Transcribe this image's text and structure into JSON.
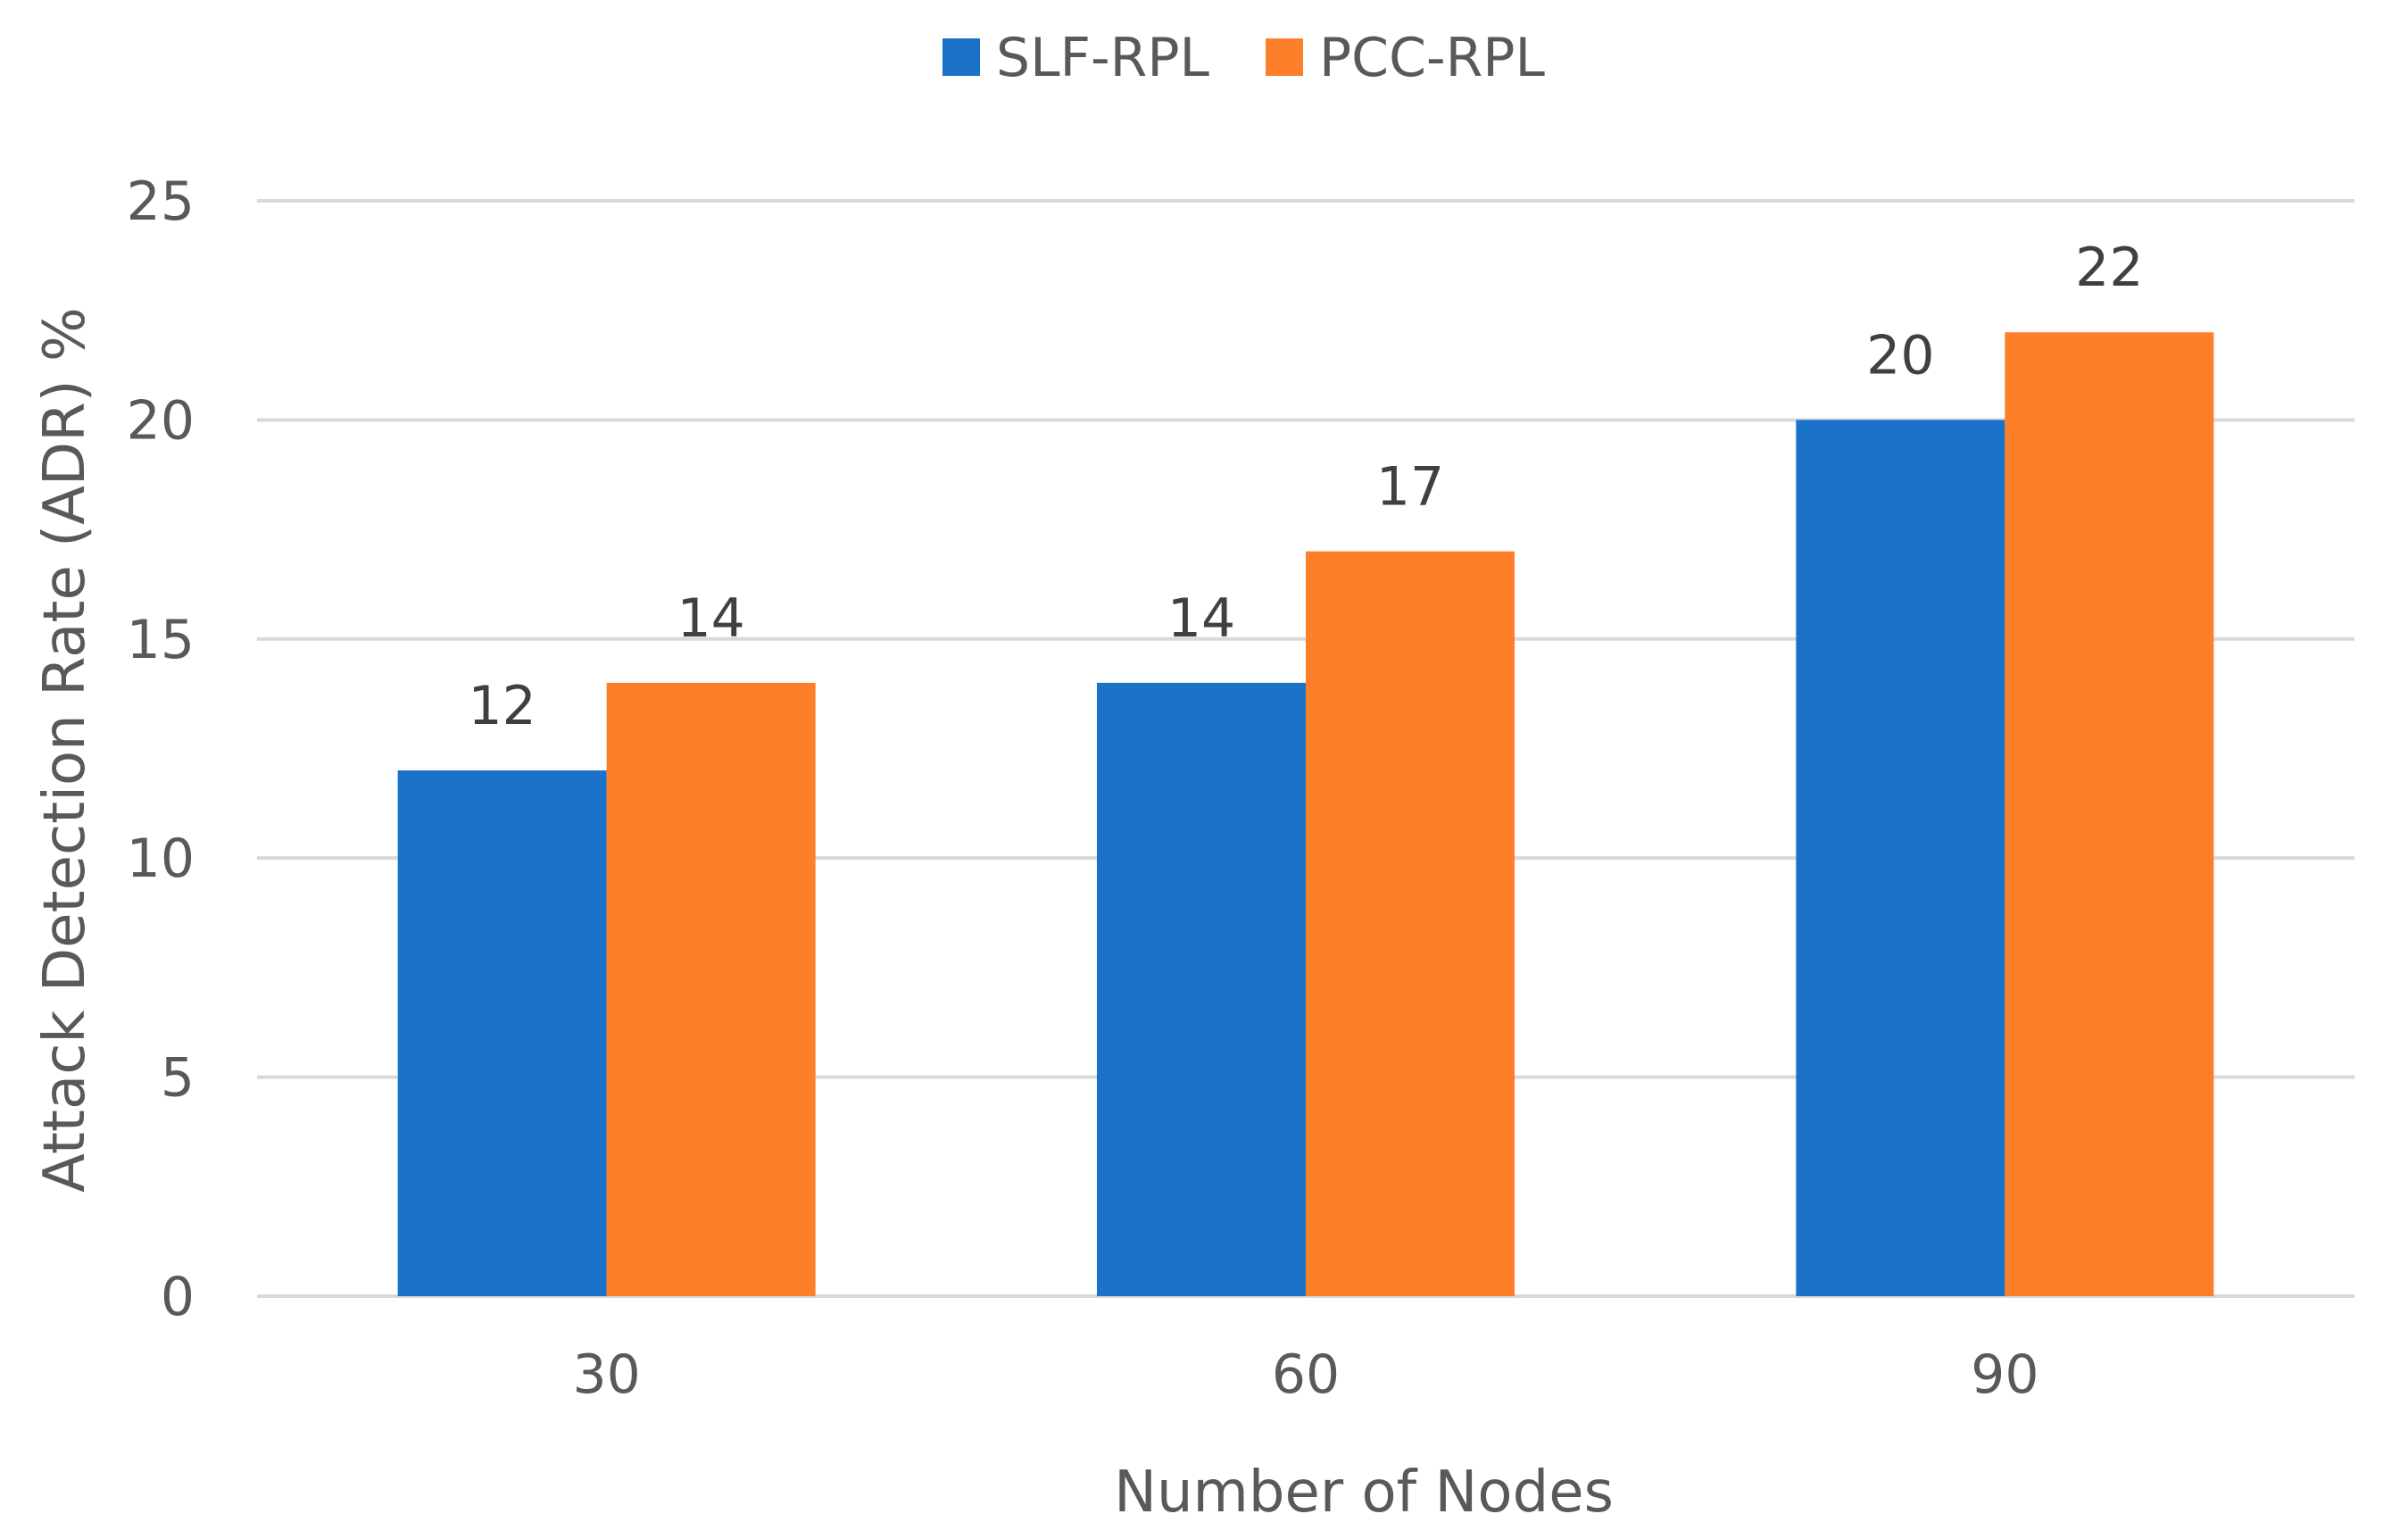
{
  "chart_data": {
    "type": "bar",
    "title": "",
    "xlabel": "Number of Nodes",
    "ylabel": "Attack Detection Rate (ADR) %",
    "categories": [
      "30",
      "60",
      "90"
    ],
    "series": [
      {
        "name": "SLF-RPL",
        "color": "#1a73c9",
        "values": [
          12,
          14,
          20
        ]
      },
      {
        "name": "PCC-RPL",
        "color": "#fe7f29",
        "values": [
          14,
          17,
          22
        ]
      }
    ],
    "ylim": [
      0,
      25
    ],
    "yticks": [
      0,
      5,
      10,
      15,
      20,
      25
    ],
    "grid": true,
    "legend_position": "top-center",
    "data_labels": true
  }
}
